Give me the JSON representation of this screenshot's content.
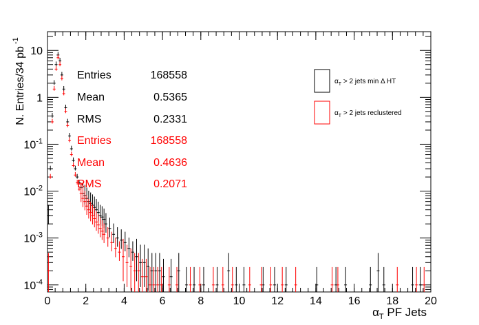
{
  "chart_data": {
    "type": "scatter",
    "title": "",
    "xlabel_main": "α",
    "xlabel_sub": "T",
    "xlabel_rest": "PF Jets",
    "ylabel_main": "N. Entries/34 pb",
    "ylabel_sup": "-1",
    "xlim": [
      0,
      20
    ],
    "ylim_log10": [
      -4.15,
      1.4
    ],
    "y_log_scale": true,
    "x_ticks": [
      "0",
      "2",
      "4",
      "6",
      "8",
      "10",
      "12",
      "14",
      "16",
      "18",
      "20"
    ],
    "y_ticks": [
      {
        "base": "10",
        "exp": "-4",
        "value": 0.0001
      },
      {
        "base": "10",
        "exp": "-3",
        "value": 0.001
      },
      {
        "base": "10",
        "exp": "-2",
        "value": 0.01
      },
      {
        "base": "10",
        "exp": "-1",
        "value": 0.1
      },
      {
        "base": "1",
        "exp": "",
        "value": 1
      },
      {
        "base": "10",
        "exp": "",
        "value": 10
      }
    ],
    "legend_position": "top-right",
    "series": [
      {
        "name": "α_T > 2 jets min ΔHT",
        "color": "#000000",
        "points": [
          [
            0.05,
            0.003
          ],
          [
            0.15,
            0.03
          ],
          [
            0.25,
            0.4
          ],
          [
            0.35,
            2.0
          ],
          [
            0.45,
            5.0
          ],
          [
            0.55,
            8.0
          ],
          [
            0.65,
            6.0
          ],
          [
            0.75,
            3.0
          ],
          [
            0.85,
            1.5
          ],
          [
            0.95,
            0.6
          ],
          [
            1.05,
            0.3
          ],
          [
            1.15,
            0.15
          ],
          [
            1.25,
            0.08
          ],
          [
            1.35,
            0.045
          ],
          [
            1.45,
            0.03
          ],
          [
            1.55,
            0.02
          ],
          [
            1.65,
            0.015
          ],
          [
            1.75,
            0.012
          ],
          [
            1.85,
            0.009
          ],
          [
            1.95,
            0.008
          ],
          [
            2.05,
            0.007
          ],
          [
            2.15,
            0.006
          ],
          [
            2.25,
            0.0055
          ],
          [
            2.35,
            0.005
          ],
          [
            2.45,
            0.0045
          ],
          [
            2.55,
            0.004
          ],
          [
            2.65,
            0.0035
          ],
          [
            2.75,
            0.003
          ],
          [
            2.85,
            0.0028
          ],
          [
            2.95,
            0.0025
          ],
          [
            3.05,
            0.002
          ],
          [
            3.25,
            0.0016
          ],
          [
            3.45,
            0.0012
          ],
          [
            3.65,
            0.001
          ],
          [
            3.85,
            0.0009
          ],
          [
            4.05,
            0.0008
          ],
          [
            4.25,
            0.0006
          ],
          [
            4.45,
            0.0005
          ],
          [
            4.65,
            0.0004
          ],
          [
            4.85,
            0.0003
          ],
          [
            5.05,
            0.0003
          ],
          [
            5.25,
            0.00025
          ],
          [
            5.45,
            0.0002
          ],
          [
            5.65,
            0.0002
          ],
          [
            5.85,
            0.0002
          ],
          [
            6.05,
            0.00015
          ],
          [
            6.45,
            0.00015
          ],
          [
            6.85,
            0.0002
          ],
          [
            7.25,
            0.0001
          ],
          [
            7.65,
            0.0001
          ],
          [
            8.15,
            0.0001
          ],
          [
            8.85,
            0.0001
          ],
          [
            9.45,
            0.0002
          ],
          [
            9.85,
            0.0001
          ],
          [
            10.25,
            0.0001
          ],
          [
            11.25,
            0.0001
          ],
          [
            11.85,
            0.0001
          ],
          [
            12.45,
            0.0001
          ],
          [
            14.05,
            0.0001
          ],
          [
            15.05,
            0.0001
          ],
          [
            15.55,
            0.0001
          ],
          [
            16.85,
            0.0001
          ],
          [
            17.25,
            0.0002
          ],
          [
            17.55,
            0.0001
          ],
          [
            19.05,
            0.0001
          ],
          [
            19.45,
            0.0001
          ]
        ]
      },
      {
        "name": "α_T > 2 jets reclustered",
        "color": "#ff0000",
        "points": [
          [
            0.05,
            0.0002
          ],
          [
            0.15,
            0.02
          ],
          [
            0.25,
            0.3
          ],
          [
            0.35,
            1.5
          ],
          [
            0.45,
            4.0
          ],
          [
            0.55,
            7.0
          ],
          [
            0.65,
            5.0
          ],
          [
            0.75,
            2.5
          ],
          [
            0.85,
            1.2
          ],
          [
            0.95,
            0.5
          ],
          [
            1.05,
            0.25
          ],
          [
            1.15,
            0.12
          ],
          [
            1.25,
            0.06
          ],
          [
            1.35,
            0.035
          ],
          [
            1.45,
            0.022
          ],
          [
            1.55,
            0.015
          ],
          [
            1.65,
            0.011
          ],
          [
            1.75,
            0.009
          ],
          [
            1.85,
            0.007
          ],
          [
            1.95,
            0.006
          ],
          [
            2.05,
            0.0048
          ],
          [
            2.15,
            0.004
          ],
          [
            2.25,
            0.0035
          ],
          [
            2.35,
            0.003
          ],
          [
            2.45,
            0.0026
          ],
          [
            2.55,
            0.0022
          ],
          [
            2.65,
            0.0019
          ],
          [
            2.75,
            0.0016
          ],
          [
            2.85,
            0.0014
          ],
          [
            2.95,
            0.0012
          ],
          [
            3.15,
            0.001
          ],
          [
            3.35,
            0.0008
          ],
          [
            3.55,
            0.0006
          ],
          [
            3.75,
            0.0005
          ],
          [
            3.95,
            0.0004
          ],
          [
            4.15,
            0.0003
          ],
          [
            4.35,
            0.00025
          ],
          [
            4.55,
            0.0002
          ],
          [
            4.75,
            0.0002
          ],
          [
            4.95,
            0.00015
          ],
          [
            5.15,
            0.00015
          ],
          [
            5.35,
            0.0001
          ],
          [
            5.55,
            0.0001
          ],
          [
            5.75,
            0.0001
          ],
          [
            5.95,
            0.0001
          ],
          [
            6.35,
            0.0001
          ],
          [
            6.75,
            0.0001
          ],
          [
            7.45,
            0.0001
          ],
          [
            7.95,
            0.0001
          ],
          [
            8.65,
            0.0001
          ],
          [
            9.15,
            0.0001
          ],
          [
            9.65,
            0.0001
          ],
          [
            10.55,
            0.0001
          ],
          [
            11.15,
            0.0001
          ],
          [
            11.65,
            0.0001
          ],
          [
            12.25,
            0.0001
          ],
          [
            12.95,
            0.0001
          ],
          [
            14.85,
            0.0001
          ],
          [
            15.15,
            0.0001
          ],
          [
            18.25,
            0.0001
          ],
          [
            19.25,
            0.0001
          ],
          [
            19.65,
            0.0001
          ]
        ]
      }
    ]
  },
  "legend": [
    {
      "main": "α",
      "sub": "T",
      "rest": " > 2 jets min   Δ HT",
      "color": "#000000"
    },
    {
      "main": "α",
      "sub": "T",
      "rest": " > 2 jets reclustered",
      "color": "#ff0000"
    }
  ],
  "stats": [
    {
      "label": "Entries",
      "value": "168558",
      "color": "#000000"
    },
    {
      "label": "Mean",
      "value": "0.5365",
      "color": "#000000"
    },
    {
      "label": "RMS",
      "value": "0.2331",
      "color": "#000000"
    },
    {
      "label": "Entries",
      "value": "168558",
      "color": "#ff0000"
    },
    {
      "label": "Mean",
      "value": "0.4636",
      "color": "#ff0000"
    },
    {
      "label": "RMS",
      "value": "0.2071",
      "color": "#ff0000"
    }
  ]
}
